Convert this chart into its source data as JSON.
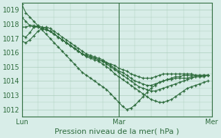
{
  "title": "",
  "xlabel": "Pression niveau de la mer( hPa )",
  "ylabel": "",
  "bg_color": "#d8ede8",
  "grid_color": "#aaccbb",
  "line_color": "#2d6b3c",
  "marker_color": "#2d6b3c",
  "xlim": [
    0,
    47
  ],
  "ylim": [
    1011.5,
    1019.5
  ],
  "yticks": [
    1012,
    1013,
    1014,
    1015,
    1016,
    1017,
    1018,
    1019
  ],
  "xtick_positions": [
    0,
    24,
    47
  ],
  "xtick_labels": [
    "Lun",
    "Mar",
    "Mer"
  ],
  "series": [
    [
      1019.4,
      1018.8,
      1018.5,
      1018.2,
      1017.9,
      1017.6,
      1017.3,
      1017.0,
      1016.7,
      1016.4,
      1016.1,
      1015.8,
      1015.5,
      1015.2,
      1014.9,
      1014.6,
      1014.4,
      1014.2,
      1014.0,
      1013.8,
      1013.6,
      1013.4,
      1013.1,
      1012.8,
      1012.5,
      1012.2,
      1012.0,
      1012.1,
      1012.3,
      1012.6,
      1012.9,
      1013.2,
      1013.5,
      1013.7,
      1013.9,
      1014.0,
      1014.1,
      1014.1,
      1014.2,
      1014.2,
      1014.2,
      1014.2,
      1014.3,
      1014.3,
      1014.3,
      1014.3,
      1014.4
    ],
    [
      1018.5,
      1018.2,
      1017.9,
      1017.8,
      1017.8,
      1017.7,
      1017.6,
      1017.5,
      1017.3,
      1017.1,
      1016.9,
      1016.7,
      1016.5,
      1016.3,
      1016.1,
      1015.9,
      1015.7,
      1015.6,
      1015.5,
      1015.4,
      1015.2,
      1015.0,
      1014.8,
      1014.5,
      1014.3,
      1014.1,
      1013.9,
      1013.7,
      1013.5,
      1013.3,
      1013.1,
      1012.9,
      1012.7,
      1012.6,
      1012.5,
      1012.5,
      1012.6,
      1012.7,
      1012.9,
      1013.1,
      1013.3,
      1013.5,
      1013.6,
      1013.7,
      1013.8,
      1013.9,
      1014.0
    ],
    [
      1017.8,
      1017.8,
      1017.9,
      1017.9,
      1017.8,
      1017.7,
      1017.6,
      1017.5,
      1017.3,
      1017.1,
      1016.9,
      1016.7,
      1016.5,
      1016.3,
      1016.1,
      1015.9,
      1015.8,
      1015.7,
      1015.6,
      1015.5,
      1015.4,
      1015.2,
      1015.0,
      1014.8,
      1014.6,
      1014.4,
      1014.2,
      1014.0,
      1013.8,
      1013.6,
      1013.5,
      1013.4,
      1013.3,
      1013.3,
      1013.4,
      1013.5,
      1013.6,
      1013.7,
      1013.8,
      1013.9,
      1014.0,
      1014.1,
      1014.2,
      1014.3,
      1014.3,
      1014.4,
      1014.4
    ],
    [
      1017.2,
      1017.1,
      1017.4,
      1017.8,
      1017.9,
      1017.8,
      1017.7,
      1017.5,
      1017.3,
      1017.1,
      1016.9,
      1016.7,
      1016.5,
      1016.3,
      1016.1,
      1015.9,
      1015.8,
      1015.7,
      1015.6,
      1015.5,
      1015.4,
      1015.3,
      1015.1,
      1014.9,
      1014.7,
      1014.6,
      1014.4,
      1014.2,
      1014.0,
      1013.9,
      1013.8,
      1013.7,
      1013.7,
      1013.8,
      1013.9,
      1014.0,
      1014.1,
      1014.2,
      1014.3,
      1014.3,
      1014.4,
      1014.4,
      1014.4,
      1014.4,
      1014.4,
      1014.4,
      1014.4
    ],
    [
      1016.8,
      1016.7,
      1016.9,
      1017.2,
      1017.5,
      1017.7,
      1017.8,
      1017.7,
      1017.5,
      1017.3,
      1017.1,
      1016.9,
      1016.7,
      1016.5,
      1016.3,
      1016.1,
      1015.9,
      1015.8,
      1015.7,
      1015.6,
      1015.5,
      1015.3,
      1015.2,
      1015.1,
      1014.9,
      1014.8,
      1014.7,
      1014.5,
      1014.4,
      1014.3,
      1014.2,
      1014.2,
      1014.2,
      1014.3,
      1014.4,
      1014.5,
      1014.5,
      1014.5,
      1014.5,
      1014.5,
      1014.5,
      1014.5,
      1014.5,
      1014.4,
      1014.4,
      1014.4,
      1014.4
    ]
  ]
}
